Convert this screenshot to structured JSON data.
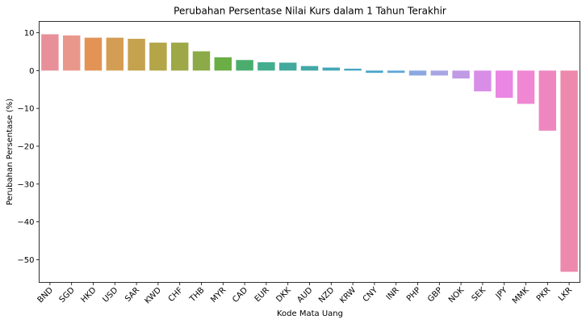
{
  "chart_data": {
    "type": "bar",
    "title": "Perubahan Persentase Nilai Kurs dalam 1 Tahun Terakhir",
    "xlabel": "Kode Mata Uang",
    "ylabel": "Perubahan Persentase (%)",
    "ylim": [
      -56,
      13
    ],
    "yticks": [
      10,
      0,
      -10,
      -20,
      -30,
      -40,
      -50
    ],
    "ytick_labels": [
      "10",
      "0",
      "−10",
      "−20",
      "−30",
      "−40",
      "−50"
    ],
    "grid": false,
    "categories": [
      "BND",
      "SGD",
      "HKD",
      "USD",
      "SAR",
      "KWD",
      "CHF",
      "THB",
      "MYR",
      "CAD",
      "EUR",
      "DKK",
      "AUD",
      "NZD",
      "KRW",
      "CNY",
      "INR",
      "PHP",
      "GBP",
      "NOK",
      "SEK",
      "JPY",
      "MMK",
      "PKR",
      "LKR"
    ],
    "values": [
      9.6,
      9.3,
      8.7,
      8.7,
      8.4,
      7.4,
      7.4,
      5.1,
      3.5,
      2.8,
      2.2,
      2.1,
      1.2,
      0.8,
      0.5,
      -0.6,
      -0.6,
      -1.3,
      -1.3,
      -2.1,
      -5.5,
      -7.2,
      -8.8,
      -15.9,
      -53.2
    ],
    "colors": [
      "#e8909a",
      "#e9978b",
      "#e39355",
      "#d49d54",
      "#c5a24d",
      "#b3a548",
      "#9ea847",
      "#8cab48",
      "#6aae45",
      "#4aad6d",
      "#44ad8e",
      "#42aa9c",
      "#42a9a8",
      "#44a6b5",
      "#46a4c2",
      "#4aa5c9",
      "#61a6d6",
      "#8ca8e2",
      "#a7a5e3",
      "#c09ae5",
      "#d88ee6",
      "#ea86e4",
      "#ef87d2",
      "#ee87bf",
      "#ec89ad"
    ]
  }
}
